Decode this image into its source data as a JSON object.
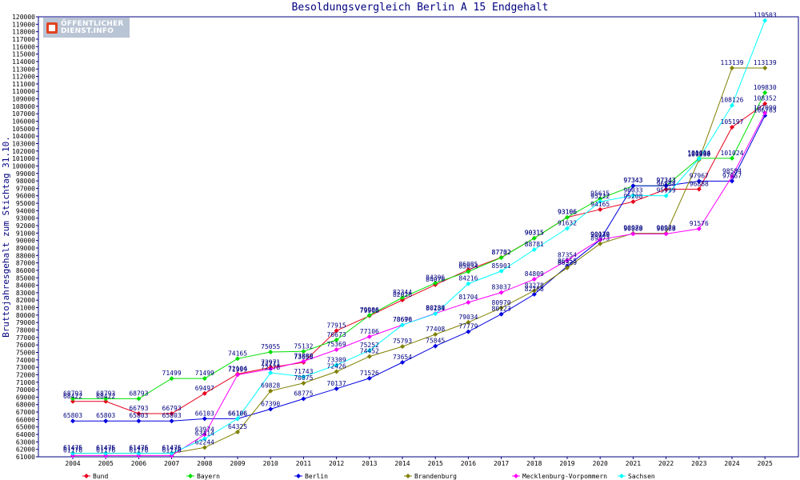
{
  "chart_data": {
    "type": "line",
    "title": "Besoldungsvergleich Berlin A 15 Endgehalt",
    "xlabel": "",
    "ylabel": "Bruttojahresgehalt zum Stichtag 31.10.",
    "ylim": [
      61000,
      120000
    ],
    "ytick_step": 1000,
    "grid": false,
    "legend": "bottom",
    "x": [
      "2004",
      "2005",
      "2006",
      "2007",
      "2008",
      "2009",
      "2010",
      "2011",
      "2012",
      "2013",
      "2014",
      "2015",
      "2016",
      "2017",
      "2018",
      "2019",
      "2020",
      "2021",
      "2022",
      "2023",
      "2024",
      "2025"
    ],
    "series": [
      {
        "name": "Bund",
        "color": "#e8001c",
        "values": [
          68422,
          68422,
          66793,
          66793,
          69497,
          72104,
          72971,
          73656,
          77915,
          79906,
          82026,
          84076,
          86085,
          87732,
          90315,
          93106,
          94165,
          95208,
          96888,
          96888,
          105197,
          108352
        ]
      },
      {
        "name": "Bayern",
        "color": "#00e000",
        "values": [
          68793,
          68793,
          68793,
          71499,
          71499,
          74165,
          75055,
          75132,
          76673,
          79986,
          82344,
          84306,
          85834,
          87702,
          90315,
          93106,
          95615,
          97343,
          97343,
          101024,
          101024,
          109830
        ]
      },
      {
        "name": "Berlin",
        "color": "#0000e0",
        "values": [
          65803,
          65803,
          65803,
          65803,
          66103,
          66106,
          67390,
          68775,
          70137,
          71526,
          73654,
          75845,
          77779,
          80123,
          82788,
          86555,
          90079,
          97343,
          97343,
          97967,
          97967,
          106765
        ]
      },
      {
        "name": "Brandenburg",
        "color": "#808000",
        "values": [
          61475,
          61475,
          61475,
          61475,
          62244,
          64325,
          69828,
          70875,
          72426,
          74452,
          75793,
          77408,
          79034,
          80970,
          83278,
          86339,
          89573,
          90970,
          90970,
          100830,
          113139,
          113139
        ]
      },
      {
        "name": "Mecklenburg-Vorpommern",
        "color": "#ff00ff",
        "values": [
          61176,
          61176,
          61176,
          61176,
          63974,
          71999,
          72771,
          73809,
          75369,
          77106,
          78690,
          80239,
          81704,
          83037,
          84809,
          87354,
          90138,
          90888,
          90888,
          91576,
          98584,
          107099
        ]
      },
      {
        "name": "Sachsen",
        "color": "#00ffff",
        "values": [
          61476,
          61476,
          61476,
          61476,
          63414,
          66106,
          72278,
          71743,
          73309,
          75252,
          78676,
          80184,
          84216,
          85901,
          88781,
          91632,
          95222,
          96033,
          95999,
          100960,
          108126,
          119503
        ]
      }
    ]
  }
}
